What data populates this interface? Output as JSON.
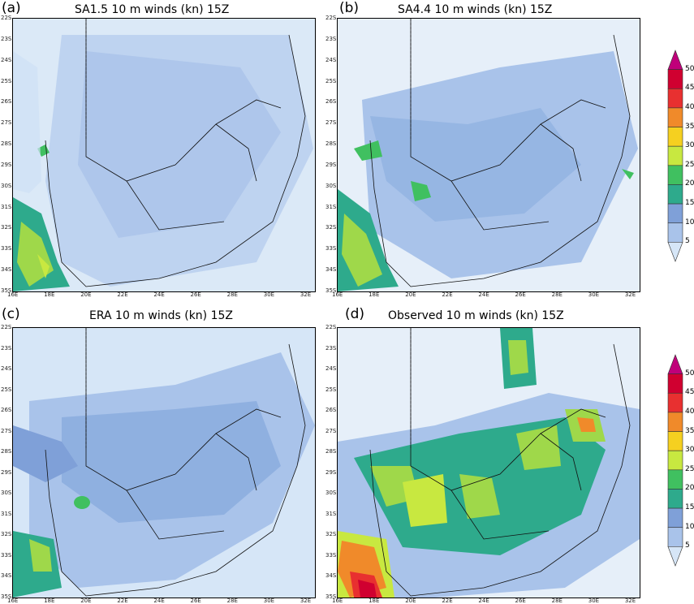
{
  "panels": [
    {
      "letter": "(a)",
      "title": "SA1.5  10 m  winds  (kn)  15Z"
    },
    {
      "letter": "(b)",
      "title": "SA4.4  10 m  winds  (kn)  15Z"
    },
    {
      "letter": "(c)",
      "title": "ERA  10 m  winds  (kn)  15Z"
    },
    {
      "letter": "(d)",
      "title": "Observed  10 m  winds  (kn)  15Z"
    }
  ],
  "lat_labels": [
    "22S",
    "23S",
    "24S",
    "25S",
    "26S",
    "27S",
    "28S",
    "29S",
    "30S",
    "31S",
    "32S",
    "33S",
    "34S",
    "35S"
  ],
  "lon_labels": [
    "16E",
    "18E",
    "20E",
    "22E",
    "24E",
    "26E",
    "28E",
    "30E",
    "32E"
  ],
  "colorbar": {
    "levels": [
      "50",
      "45",
      "40",
      "35",
      "30",
      "25",
      "20",
      "15",
      "10",
      "5"
    ],
    "colors": [
      "#c0007a",
      "#d00030",
      "#e83030",
      "#f08a2a",
      "#f5d020",
      "#c8e840",
      "#40c060",
      "#2eaa8c",
      "#7fa0d8",
      "#a9c3ea",
      "#d6e6f7"
    ]
  }
}
